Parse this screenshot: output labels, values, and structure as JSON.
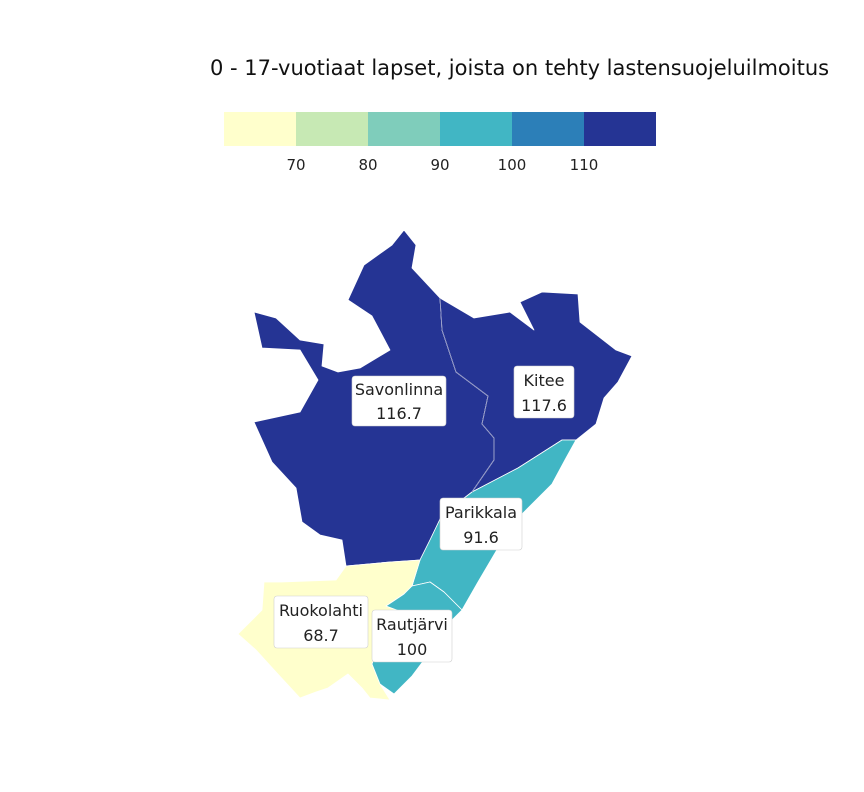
{
  "title": "0 - 17-vuotiaat lapset, joista on tehty lastensuojeluilmoitus",
  "legend": {
    "colors": [
      "#ffffcc",
      "#c7e9b4",
      "#7fcdbb",
      "#41b6c4",
      "#2c7fb8",
      "#253494"
    ],
    "ticks": [
      "70",
      "80",
      "90",
      "100",
      "110"
    ]
  },
  "regions": [
    {
      "name": "Savonlinna",
      "value": "116.7",
      "color": "#253494"
    },
    {
      "name": "Kitee",
      "value": "117.6",
      "color": "#253494"
    },
    {
      "name": "Parikkala",
      "value": "91.6",
      "color": "#41b6c4"
    },
    {
      "name": "Ruokolahti",
      "value": "68.7",
      "color": "#ffffcc"
    },
    {
      "name": "Rautjärvi",
      "value": "100",
      "color": "#41b6c4"
    }
  ]
}
